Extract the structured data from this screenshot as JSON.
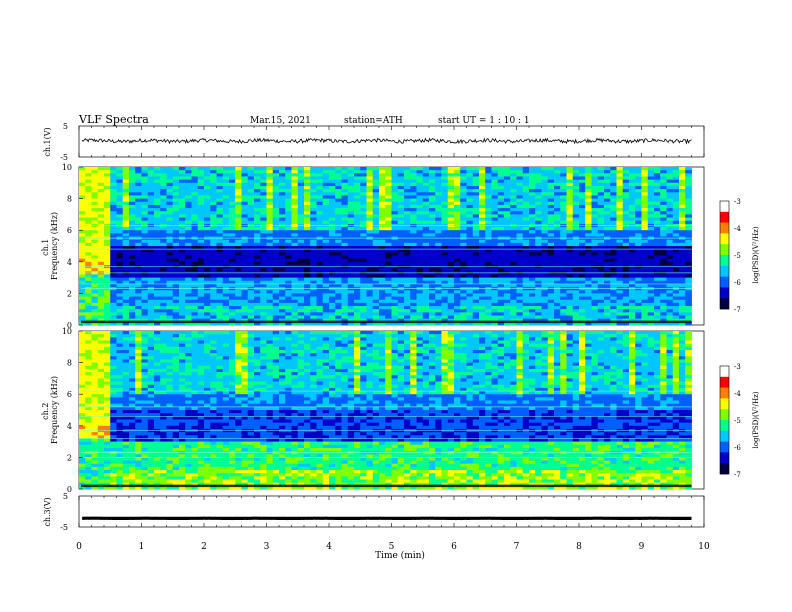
{
  "header": {
    "title": "VLF  Spectra",
    "date": "Mar.15, 2021",
    "station": "station=ATH",
    "start": "start  UT  =   1  : 10 : 1"
  },
  "chart_data": [
    {
      "type": "line",
      "name": "ch1-waveform",
      "ylabel": "ch.1(V)",
      "ylim": [
        -5,
        5
      ],
      "yticks": [
        "5",
        "-5"
      ],
      "xlim": [
        0,
        10
      ],
      "trace_mean": 0.2,
      "trace_amplitude": 1.2
    },
    {
      "type": "heatmap",
      "name": "ch1-spectrogram",
      "ylabel": "ch.1\nFrequency  (kHz)",
      "ylim": [
        0,
        10
      ],
      "yticks": [
        "10",
        "8",
        "6",
        "4",
        "2",
        "0"
      ],
      "xlim": [
        0,
        9.8
      ],
      "colorbar": {
        "label": "log(PSD)(V²/Hz)",
        "range": [
          -7,
          -3
        ],
        "ticks": [
          "-3",
          "-4",
          "-5",
          "-6",
          "-7"
        ]
      }
    },
    {
      "type": "heatmap",
      "name": "ch2-spectrogram",
      "ylabel": "ch.2\nFrequency  (kHz)",
      "ylim": [
        0,
        10
      ],
      "yticks": [
        "10",
        "8",
        "6",
        "4",
        "2",
        "0"
      ],
      "xlim": [
        0,
        9.8
      ],
      "colorbar": {
        "label": "log(PSD)(V²/Hz)",
        "range": [
          -7,
          -3
        ],
        "ticks": [
          "-3",
          "-4",
          "-5",
          "-6",
          "-7"
        ]
      }
    },
    {
      "type": "line",
      "name": "ch3-waveform",
      "ylabel": "ch.3(V)",
      "ylim": [
        -5,
        5
      ],
      "yticks": [
        "5",
        "-5"
      ],
      "xlim": [
        0,
        10
      ],
      "trace_mean": -2.2,
      "trace_amplitude": 0.2
    }
  ],
  "xaxis": {
    "label": "Time  (min)",
    "ticks": [
      "0",
      "1",
      "2",
      "3",
      "4",
      "5",
      "6",
      "7",
      "8",
      "9",
      "10"
    ]
  },
  "colormap": [
    "#000040",
    "#0000c8",
    "#0060ff",
    "#00c8ff",
    "#00ff90",
    "#80ff00",
    "#ffff00",
    "#ff8000",
    "#ff0000",
    "#ffffff"
  ]
}
